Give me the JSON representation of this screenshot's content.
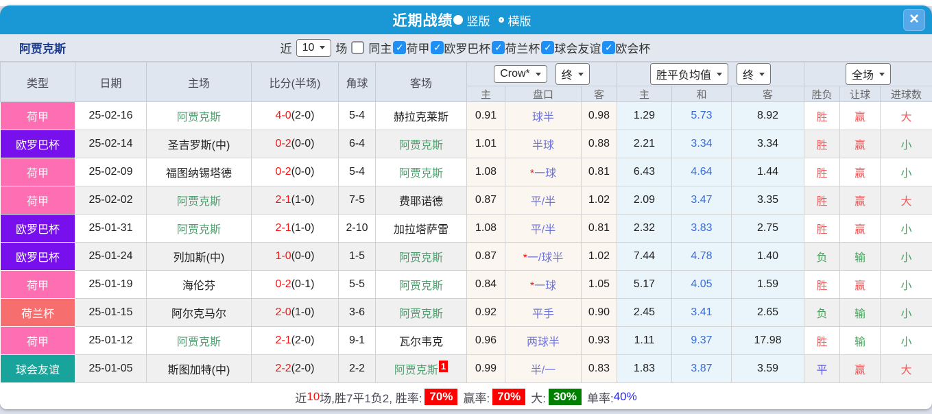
{
  "titlebar": {
    "title": "近期战绩",
    "view_options": [
      {
        "label": "竖版",
        "selected": true
      },
      {
        "label": "横版",
        "selected": false
      }
    ],
    "close_label": "×"
  },
  "filterbar": {
    "team": "阿贾克斯",
    "recent_label": "近",
    "recent_value": "10",
    "matches_label": "场",
    "same_home_label": "同主",
    "same_home_checked": false,
    "leagues": [
      {
        "label": "荷甲",
        "checked": true
      },
      {
        "label": "欧罗巴杯",
        "checked": true
      },
      {
        "label": "荷兰杯",
        "checked": true
      },
      {
        "label": "球会友谊",
        "checked": true
      },
      {
        "label": "欧会杯",
        "checked": true
      }
    ]
  },
  "table": {
    "headers": [
      "类型",
      "日期",
      "主场",
      "比分(半场)",
      "角球",
      "客场"
    ],
    "selects": {
      "company": "Crow*",
      "company_time": "终",
      "avg": "胜平负均值",
      "avg_time": "终",
      "scope": "全场"
    },
    "sub_headers": [
      "主",
      "盘口",
      "客",
      "主",
      "和",
      "客",
      "胜负",
      "让球",
      "进球数"
    ],
    "rows": [
      {
        "league": "荷甲",
        "league_color": "#fd6fb2",
        "date": "25-02-16",
        "home": "阿贾克斯",
        "home_is_team": true,
        "score": "4-0",
        "half": "2-0",
        "corners": "5-4",
        "away": "赫拉克莱斯",
        "away_is_team": false,
        "away_badge": "",
        "odds_home": "0.91",
        "handicap_star": false,
        "handicap": "球半",
        "odds_away": "0.98",
        "avg_home": "1.29",
        "avg_draw": "5.73",
        "avg_away": "8.92",
        "result": "胜",
        "result_color": "red",
        "cover": "赢",
        "cover_color": "red",
        "goals": "大",
        "goals_color": "red"
      },
      {
        "league": "欧罗巴杯",
        "league_color": "#7710ec",
        "date": "25-02-14",
        "home": "圣吉罗斯(中)",
        "home_is_team": false,
        "score": "0-2",
        "half": "0-0",
        "corners": "6-4",
        "away": "阿贾克斯",
        "away_is_team": true,
        "away_badge": "",
        "odds_home": "1.01",
        "handicap_star": false,
        "handicap": "半球",
        "odds_away": "0.88",
        "avg_home": "2.21",
        "avg_draw": "3.34",
        "avg_away": "3.34",
        "result": "胜",
        "result_color": "red",
        "cover": "赢",
        "cover_color": "red",
        "goals": "小",
        "goals_color": "green"
      },
      {
        "league": "荷甲",
        "league_color": "#fd6fb2",
        "date": "25-02-09",
        "home": "福图纳锡塔德",
        "home_is_team": false,
        "score": "0-2",
        "half": "0-0",
        "corners": "5-4",
        "away": "阿贾克斯",
        "away_is_team": true,
        "away_badge": "",
        "odds_home": "1.08",
        "handicap_star": true,
        "handicap": "一球",
        "odds_away": "0.81",
        "avg_home": "6.43",
        "avg_draw": "4.64",
        "avg_away": "1.44",
        "result": "胜",
        "result_color": "red",
        "cover": "赢",
        "cover_color": "red",
        "goals": "小",
        "goals_color": "green"
      },
      {
        "league": "荷甲",
        "league_color": "#fd6fb2",
        "date": "25-02-02",
        "home": "阿贾克斯",
        "home_is_team": true,
        "score": "2-1",
        "half": "1-0",
        "corners": "7-5",
        "away": "费耶诺德",
        "away_is_team": false,
        "away_badge": "",
        "odds_home": "0.87",
        "handicap_star": false,
        "handicap": "平/半",
        "odds_away": "1.02",
        "avg_home": "2.09",
        "avg_draw": "3.47",
        "avg_away": "3.35",
        "result": "胜",
        "result_color": "red",
        "cover": "赢",
        "cover_color": "red",
        "goals": "大",
        "goals_color": "red"
      },
      {
        "league": "欧罗巴杯",
        "league_color": "#7710ec",
        "date": "25-01-31",
        "home": "阿贾克斯",
        "home_is_team": true,
        "score": "2-1",
        "half": "1-0",
        "corners": "2-10",
        "away": "加拉塔萨雷",
        "away_is_team": false,
        "away_badge": "",
        "odds_home": "1.08",
        "handicap_star": false,
        "handicap": "平/半",
        "odds_away": "0.81",
        "avg_home": "2.32",
        "avg_draw": "3.83",
        "avg_away": "2.75",
        "result": "胜",
        "result_color": "red",
        "cover": "赢",
        "cover_color": "red",
        "goals": "小",
        "goals_color": "green"
      },
      {
        "league": "欧罗巴杯",
        "league_color": "#7710ec",
        "date": "25-01-24",
        "home": "列加斯(中)",
        "home_is_team": false,
        "score": "1-0",
        "half": "0-0",
        "corners": "1-5",
        "away": "阿贾克斯",
        "away_is_team": true,
        "away_badge": "",
        "odds_home": "0.87",
        "handicap_star": true,
        "handicap": "一/球半",
        "odds_away": "1.02",
        "avg_home": "7.44",
        "avg_draw": "4.78",
        "avg_away": "1.40",
        "result": "负",
        "result_color": "green",
        "cover": "输",
        "cover_color": "green",
        "goals": "小",
        "goals_color": "green"
      },
      {
        "league": "荷甲",
        "league_color": "#fd6fb2",
        "date": "25-01-19",
        "home": "海伦芬",
        "home_is_team": false,
        "score": "0-2",
        "half": "0-1",
        "corners": "5-5",
        "away": "阿贾克斯",
        "away_is_team": true,
        "away_badge": "",
        "odds_home": "0.84",
        "handicap_star": true,
        "handicap": "一球",
        "odds_away": "1.05",
        "avg_home": "5.17",
        "avg_draw": "4.05",
        "avg_away": "1.59",
        "result": "胜",
        "result_color": "red",
        "cover": "赢",
        "cover_color": "red",
        "goals": "小",
        "goals_color": "green"
      },
      {
        "league": "荷兰杯",
        "league_color": "#f66e6e",
        "date": "25-01-15",
        "home": "阿尔克马尔",
        "home_is_team": false,
        "score": "2-0",
        "half": "1-0",
        "corners": "3-6",
        "away": "阿贾克斯",
        "away_is_team": true,
        "away_badge": "",
        "odds_home": "0.92",
        "handicap_star": false,
        "handicap": "平手",
        "odds_away": "0.90",
        "avg_home": "2.45",
        "avg_draw": "3.41",
        "avg_away": "2.65",
        "result": "负",
        "result_color": "green",
        "cover": "输",
        "cover_color": "green",
        "goals": "小",
        "goals_color": "green"
      },
      {
        "league": "荷甲",
        "league_color": "#fd6fb2",
        "date": "25-01-12",
        "home": "阿贾克斯",
        "home_is_team": true,
        "score": "2-1",
        "half": "2-0",
        "corners": "9-1",
        "away": "瓦尔韦克",
        "away_is_team": false,
        "away_badge": "",
        "odds_home": "0.96",
        "handicap_star": false,
        "handicap": "两球半",
        "odds_away": "0.93",
        "avg_home": "1.11",
        "avg_draw": "9.37",
        "avg_away": "17.98",
        "result": "胜",
        "result_color": "red",
        "cover": "输",
        "cover_color": "green",
        "goals": "小",
        "goals_color": "green"
      },
      {
        "league": "球会友谊",
        "league_color": "#18a39b",
        "date": "25-01-05",
        "home": "斯图加特(中)",
        "home_is_team": false,
        "score": "2-2",
        "half": "2-0",
        "corners": "2-2",
        "away": "阿贾克斯",
        "away_is_team": true,
        "away_badge": "1",
        "odds_home": "0.99",
        "handicap_star": false,
        "handicap": "半/一",
        "odds_away": "0.83",
        "avg_home": "1.83",
        "avg_draw": "3.87",
        "avg_away": "3.59",
        "result": "平",
        "result_color": "blue",
        "cover": "赢",
        "cover_color": "red",
        "goals": "大",
        "goals_color": "red"
      }
    ]
  },
  "footer": {
    "prefix": "近",
    "count": "10",
    "record": "场,胜7平1负2, 胜率:",
    "rate1": "70%",
    "label2": "赢率:",
    "rate2": "70%",
    "label3": "大:",
    "rate3": "30%",
    "label4": "单率:",
    "rate4": "40%"
  },
  "colors": {
    "titlebar_blue": "#1a98d6",
    "league_nl": "#fd6fb2",
    "league_europa": "#7710ec",
    "league_cup": "#f66e6e",
    "league_friendly": "#18a39b",
    "checkbox_blue": "#1e90f5",
    "rate_red": "#fe0000",
    "rate_green": "#008000",
    "rate_blue": "#2222ff"
  }
}
